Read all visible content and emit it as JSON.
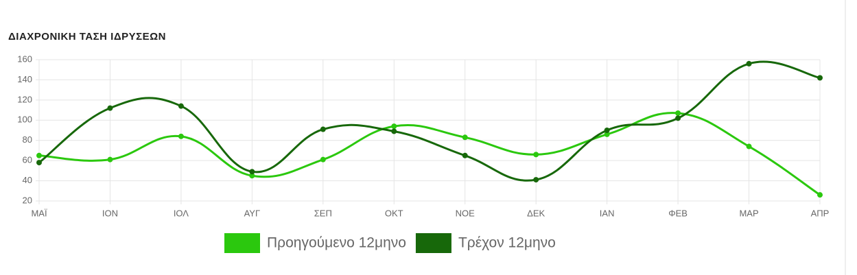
{
  "chart_data": {
    "type": "line",
    "title": "ΔΙΑΧΡΟΝΙΚΗ ΤΑΣΗ ΙΔΡΥΣΕΩΝ",
    "categories": [
      "ΜΑΪ",
      "ΙΟΝ",
      "ΙΟΛ",
      "ΑΥΓ",
      "ΣΕΠ",
      "ΟΚΤ",
      "ΝΟΕ",
      "ΔΕΚ",
      "ΙΑΝ",
      "ΦΕΒ",
      "ΜΑΡ",
      "ΑΠΡ"
    ],
    "series": [
      {
        "name": "Προηγούμενο 12μηνο",
        "color": "#2bc80e",
        "values": [
          65,
          61,
          84,
          45,
          61,
          94,
          83,
          66,
          86,
          107,
          74,
          26
        ]
      },
      {
        "name": "Τρέχον 12μηνο",
        "color": "#17680a",
        "values": [
          58,
          112,
          114,
          49,
          91,
          89,
          65,
          41,
          90,
          102,
          156,
          142
        ]
      }
    ],
    "ylim": [
      20,
      160
    ],
    "yticks": [
      20,
      40,
      60,
      80,
      100,
      120,
      140,
      160
    ],
    "grid": true,
    "legend": "bottom"
  }
}
